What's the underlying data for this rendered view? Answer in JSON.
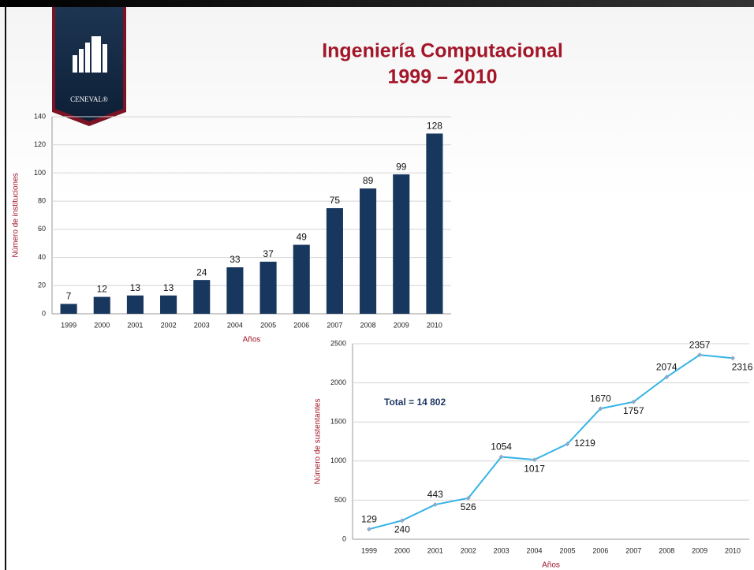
{
  "slide": {
    "title_line1": "Ingeniería Computacional",
    "title_line2": "1999 – 2010",
    "logo_text": "CENEVAL®"
  },
  "chart_data": [
    {
      "type": "bar",
      "categories": [
        "1999",
        "2000",
        "2001",
        "2002",
        "2003",
        "2004",
        "2005",
        "2006",
        "2007",
        "2008",
        "2009",
        "2010"
      ],
      "values": [
        7,
        12,
        13,
        13,
        24,
        33,
        37,
        49,
        75,
        89,
        99,
        128
      ],
      "color": "#17375e",
      "x_label": "Años",
      "y_label": "Número de instituciones",
      "ylim": [
        0,
        140
      ],
      "yticks": [
        0,
        20,
        40,
        60,
        80,
        100,
        120,
        140
      ],
      "grid": true
    },
    {
      "type": "line",
      "categories": [
        "1999",
        "2000",
        "2001",
        "2002",
        "2003",
        "2004",
        "2005",
        "2006",
        "2007",
        "2008",
        "2009",
        "2010"
      ],
      "values": [
        129,
        240,
        443,
        526,
        1054,
        1017,
        1219,
        1670,
        1757,
        2074,
        2357,
        2316
      ],
      "color": "#35b4e6",
      "x_label": "Años",
      "y_label": "Número de sustentantes",
      "annotation": "Total = 14 802",
      "ylim": [
        0,
        2500
      ],
      "yticks": [
        0,
        500,
        1000,
        1500,
        2000,
        2500
      ],
      "grid": true
    }
  ]
}
